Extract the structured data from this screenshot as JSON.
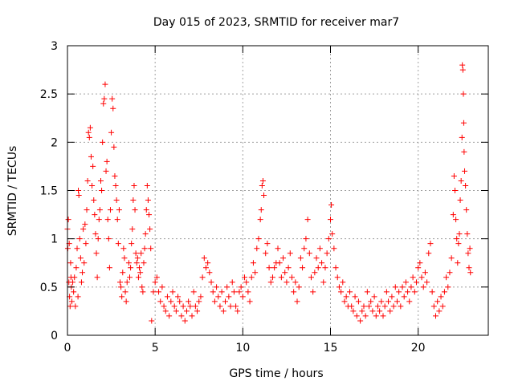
{
  "chart_data": {
    "type": "scatter",
    "title": "Day 015 of 2023, SRMTID for receiver mar7",
    "xlabel": "GPS time / hours",
    "ylabel": "SRMTID / TECUs",
    "xlim": [
      0,
      24
    ],
    "ylim": [
      0,
      3
    ],
    "xticks": [
      0,
      5,
      10,
      15,
      20
    ],
    "yticks": [
      0,
      0.5,
      1,
      1.5,
      2,
      2.5,
      3
    ],
    "xtick_labels": [
      "0",
      "5",
      "10",
      "15",
      "20"
    ],
    "ytick_labels": [
      "0",
      "0.5",
      "1",
      "1.5",
      "2",
      "2.5",
      "3"
    ],
    "grid": true,
    "marker": "+",
    "series": [
      {
        "name": "SRMTID",
        "color": "#ff0000",
        "points": [
          [
            0.0,
            1.1
          ],
          [
            0.02,
            0.9
          ],
          [
            0.05,
            1.2
          ],
          [
            0.08,
            0.55
          ],
          [
            0.1,
            0.95
          ],
          [
            0.12,
            0.4
          ],
          [
            0.15,
            0.3
          ],
          [
            0.18,
            0.75
          ],
          [
            0.2,
            0.6
          ],
          [
            0.22,
            0.5
          ],
          [
            0.25,
            0.35
          ],
          [
            0.3,
            0.55
          ],
          [
            0.35,
            0.45
          ],
          [
            0.4,
            0.6
          ],
          [
            0.45,
            0.3
          ],
          [
            0.5,
            0.7
          ],
          [
            0.55,
            0.9
          ],
          [
            0.6,
            0.4
          ],
          [
            0.62,
            1.5
          ],
          [
            0.65,
            1.45
          ],
          [
            0.7,
            1.0
          ],
          [
            0.75,
            0.8
          ],
          [
            0.8,
            0.55
          ],
          [
            0.85,
            0.65
          ],
          [
            0.9,
            1.1
          ],
          [
            0.95,
            0.75
          ],
          [
            1.0,
            1.15
          ],
          [
            1.05,
            0.95
          ],
          [
            1.1,
            1.3
          ],
          [
            1.15,
            1.6
          ],
          [
            1.2,
            2.1
          ],
          [
            1.25,
            2.05
          ],
          [
            1.3,
            2.15
          ],
          [
            1.35,
            1.85
          ],
          [
            1.4,
            1.55
          ],
          [
            1.45,
            1.75
          ],
          [
            1.5,
            1.4
          ],
          [
            1.55,
            1.25
          ],
          [
            1.6,
            1.05
          ],
          [
            1.65,
            0.85
          ],
          [
            1.7,
            0.6
          ],
          [
            1.75,
            1.0
          ],
          [
            1.8,
            1.2
          ],
          [
            1.85,
            1.3
          ],
          [
            1.9,
            1.6
          ],
          [
            1.95,
            1.5
          ],
          [
            2.0,
            2.0
          ],
          [
            2.05,
            2.4
          ],
          [
            2.1,
            2.45
          ],
          [
            2.15,
            2.6
          ],
          [
            2.2,
            1.7
          ],
          [
            2.25,
            1.8
          ],
          [
            2.3,
            1.2
          ],
          [
            2.35,
            1.0
          ],
          [
            2.4,
            0.7
          ],
          [
            2.45,
            1.3
          ],
          [
            2.5,
            2.1
          ],
          [
            2.55,
            2.45
          ],
          [
            2.6,
            2.35
          ],
          [
            2.65,
            1.95
          ],
          [
            2.7,
            1.65
          ],
          [
            2.75,
            1.55
          ],
          [
            2.8,
            1.4
          ],
          [
            2.85,
            1.2
          ],
          [
            2.9,
            0.95
          ],
          [
            2.95,
            1.3
          ],
          [
            3.0,
            0.55
          ],
          [
            3.05,
            0.5
          ],
          [
            3.1,
            0.4
          ],
          [
            3.15,
            0.65
          ],
          [
            3.2,
            0.9
          ],
          [
            3.25,
            0.8
          ],
          [
            3.3,
            0.45
          ],
          [
            3.35,
            0.35
          ],
          [
            3.4,
            0.55
          ],
          [
            3.5,
            0.75
          ],
          [
            3.55,
            0.6
          ],
          [
            3.6,
            0.7
          ],
          [
            3.65,
            0.95
          ],
          [
            3.7,
            1.1
          ],
          [
            3.75,
            1.4
          ],
          [
            3.8,
            1.55
          ],
          [
            3.85,
            1.3
          ],
          [
            3.9,
            0.85
          ],
          [
            3.95,
            0.75
          ],
          [
            4.0,
            0.8
          ],
          [
            4.05,
            0.6
          ],
          [
            4.1,
            0.7
          ],
          [
            4.15,
            0.65
          ],
          [
            4.2,
            0.85
          ],
          [
            4.25,
            0.5
          ],
          [
            4.3,
            0.45
          ],
          [
            4.35,
            0.75
          ],
          [
            4.4,
            0.9
          ],
          [
            4.45,
            1.05
          ],
          [
            4.5,
            1.3
          ],
          [
            4.55,
            1.55
          ],
          [
            4.6,
            1.4
          ],
          [
            4.65,
            1.25
          ],
          [
            4.7,
            1.1
          ],
          [
            4.75,
            0.9
          ],
          [
            4.8,
            0.15
          ],
          [
            4.9,
            0.45
          ],
          [
            5.0,
            0.55
          ],
          [
            5.1,
            0.6
          ],
          [
            5.2,
            0.45
          ],
          [
            5.3,
            0.35
          ],
          [
            5.4,
            0.5
          ],
          [
            5.5,
            0.3
          ],
          [
            5.6,
            0.25
          ],
          [
            5.7,
            0.4
          ],
          [
            5.8,
            0.2
          ],
          [
            5.9,
            0.35
          ],
          [
            6.0,
            0.45
          ],
          [
            6.1,
            0.3
          ],
          [
            6.2,
            0.25
          ],
          [
            6.3,
            0.4
          ],
          [
            6.4,
            0.35
          ],
          [
            6.5,
            0.2
          ],
          [
            6.6,
            0.3
          ],
          [
            6.7,
            0.15
          ],
          [
            6.8,
            0.25
          ],
          [
            6.9,
            0.35
          ],
          [
            7.0,
            0.3
          ],
          [
            7.1,
            0.2
          ],
          [
            7.2,
            0.45
          ],
          [
            7.3,
            0.3
          ],
          [
            7.4,
            0.25
          ],
          [
            7.5,
            0.35
          ],
          [
            7.6,
            0.4
          ],
          [
            7.7,
            0.6
          ],
          [
            7.8,
            0.8
          ],
          [
            7.9,
            0.7
          ],
          [
            8.0,
            0.75
          ],
          [
            8.1,
            0.65
          ],
          [
            8.2,
            0.55
          ],
          [
            8.3,
            0.45
          ],
          [
            8.4,
            0.35
          ],
          [
            8.5,
            0.5
          ],
          [
            8.6,
            0.4
          ],
          [
            8.7,
            0.3
          ],
          [
            8.8,
            0.45
          ],
          [
            8.9,
            0.25
          ],
          [
            9.0,
            0.35
          ],
          [
            9.1,
            0.5
          ],
          [
            9.2,
            0.4
          ],
          [
            9.3,
            0.3
          ],
          [
            9.4,
            0.55
          ],
          [
            9.5,
            0.45
          ],
          [
            9.6,
            0.3
          ],
          [
            9.7,
            0.25
          ],
          [
            9.8,
            0.45
          ],
          [
            9.9,
            0.5
          ],
          [
            10.0,
            0.4
          ],
          [
            10.1,
            0.6
          ],
          [
            10.2,
            0.55
          ],
          [
            10.3,
            0.45
          ],
          [
            10.4,
            0.35
          ],
          [
            10.5,
            0.6
          ],
          [
            10.6,
            0.75
          ],
          [
            10.7,
            0.65
          ],
          [
            10.8,
            0.9
          ],
          [
            10.9,
            1.0
          ],
          [
            11.0,
            1.2
          ],
          [
            11.05,
            1.3
          ],
          [
            11.1,
            1.55
          ],
          [
            11.15,
            1.6
          ],
          [
            11.2,
            1.45
          ],
          [
            11.3,
            0.85
          ],
          [
            11.4,
            0.95
          ],
          [
            11.5,
            0.7
          ],
          [
            11.6,
            0.55
          ],
          [
            11.7,
            0.6
          ],
          [
            11.8,
            0.7
          ],
          [
            11.9,
            0.75
          ],
          [
            12.0,
            0.9
          ],
          [
            12.1,
            0.75
          ],
          [
            12.2,
            0.6
          ],
          [
            12.3,
            0.8
          ],
          [
            12.4,
            0.65
          ],
          [
            12.5,
            0.55
          ],
          [
            12.6,
            0.7
          ],
          [
            12.7,
            0.85
          ],
          [
            12.8,
            0.6
          ],
          [
            12.9,
            0.45
          ],
          [
            13.0,
            0.55
          ],
          [
            13.1,
            0.35
          ],
          [
            13.2,
            0.5
          ],
          [
            13.3,
            0.8
          ],
          [
            13.4,
            0.7
          ],
          [
            13.5,
            0.9
          ],
          [
            13.6,
            1.0
          ],
          [
            13.7,
            1.2
          ],
          [
            13.8,
            0.85
          ],
          [
            13.9,
            0.6
          ],
          [
            14.0,
            0.45
          ],
          [
            14.1,
            0.65
          ],
          [
            14.2,
            0.8
          ],
          [
            14.3,
            0.7
          ],
          [
            14.4,
            0.9
          ],
          [
            14.5,
            0.75
          ],
          [
            14.6,
            0.55
          ],
          [
            14.7,
            0.7
          ],
          [
            14.8,
            0.85
          ],
          [
            14.9,
            1.0
          ],
          [
            15.0,
            1.2
          ],
          [
            15.05,
            1.35
          ],
          [
            15.1,
            1.05
          ],
          [
            15.2,
            0.9
          ],
          [
            15.3,
            0.7
          ],
          [
            15.4,
            0.6
          ],
          [
            15.5,
            0.5
          ],
          [
            15.6,
            0.45
          ],
          [
            15.7,
            0.55
          ],
          [
            15.8,
            0.35
          ],
          [
            15.9,
            0.4
          ],
          [
            16.0,
            0.3
          ],
          [
            16.1,
            0.45
          ],
          [
            16.2,
            0.3
          ],
          [
            16.3,
            0.25
          ],
          [
            16.4,
            0.4
          ],
          [
            16.5,
            0.2
          ],
          [
            16.6,
            0.35
          ],
          [
            16.7,
            0.15
          ],
          [
            16.8,
            0.25
          ],
          [
            16.9,
            0.3
          ],
          [
            17.0,
            0.2
          ],
          [
            17.1,
            0.45
          ],
          [
            17.2,
            0.3
          ],
          [
            17.3,
            0.35
          ],
          [
            17.4,
            0.25
          ],
          [
            17.5,
            0.4
          ],
          [
            17.6,
            0.2
          ],
          [
            17.7,
            0.3
          ],
          [
            17.8,
            0.25
          ],
          [
            17.9,
            0.35
          ],
          [
            18.0,
            0.2
          ],
          [
            18.1,
            0.3
          ],
          [
            18.2,
            0.45
          ],
          [
            18.3,
            0.35
          ],
          [
            18.4,
            0.25
          ],
          [
            18.5,
            0.4
          ],
          [
            18.6,
            0.3
          ],
          [
            18.7,
            0.5
          ],
          [
            18.8,
            0.35
          ],
          [
            18.9,
            0.45
          ],
          [
            19.0,
            0.3
          ],
          [
            19.1,
            0.5
          ],
          [
            19.2,
            0.4
          ],
          [
            19.3,
            0.55
          ],
          [
            19.4,
            0.45
          ],
          [
            19.5,
            0.35
          ],
          [
            19.6,
            0.5
          ],
          [
            19.7,
            0.6
          ],
          [
            19.8,
            0.45
          ],
          [
            19.9,
            0.55
          ],
          [
            20.0,
            0.7
          ],
          [
            20.1,
            0.75
          ],
          [
            20.2,
            0.6
          ],
          [
            20.3,
            0.5
          ],
          [
            20.4,
            0.65
          ],
          [
            20.5,
            0.55
          ],
          [
            20.6,
            0.85
          ],
          [
            20.7,
            0.95
          ],
          [
            20.8,
            0.45
          ],
          [
            20.9,
            0.3
          ],
          [
            21.0,
            0.2
          ],
          [
            21.1,
            0.35
          ],
          [
            21.2,
            0.25
          ],
          [
            21.3,
            0.4
          ],
          [
            21.4,
            0.3
          ],
          [
            21.5,
            0.45
          ],
          [
            21.6,
            0.6
          ],
          [
            21.7,
            0.5
          ],
          [
            21.8,
            0.65
          ],
          [
            21.9,
            0.8
          ],
          [
            22.0,
            1.25
          ],
          [
            22.05,
            1.65
          ],
          [
            22.1,
            1.5
          ],
          [
            22.15,
            1.2
          ],
          [
            22.2,
            1.0
          ],
          [
            22.25,
            0.75
          ],
          [
            22.3,
            0.95
          ],
          [
            22.35,
            1.05
          ],
          [
            22.4,
            1.4
          ],
          [
            22.45,
            1.6
          ],
          [
            22.5,
            2.05
          ],
          [
            22.52,
            2.8
          ],
          [
            22.55,
            2.75
          ],
          [
            22.58,
            2.5
          ],
          [
            22.6,
            2.2
          ],
          [
            22.62,
            1.9
          ],
          [
            22.65,
            1.7
          ],
          [
            22.7,
            1.55
          ],
          [
            22.75,
            1.3
          ],
          [
            22.8,
            1.05
          ],
          [
            22.85,
            0.85
          ],
          [
            22.9,
            0.7
          ],
          [
            22.95,
            0.9
          ],
          [
            22.98,
            0.65
          ]
        ]
      }
    ]
  }
}
